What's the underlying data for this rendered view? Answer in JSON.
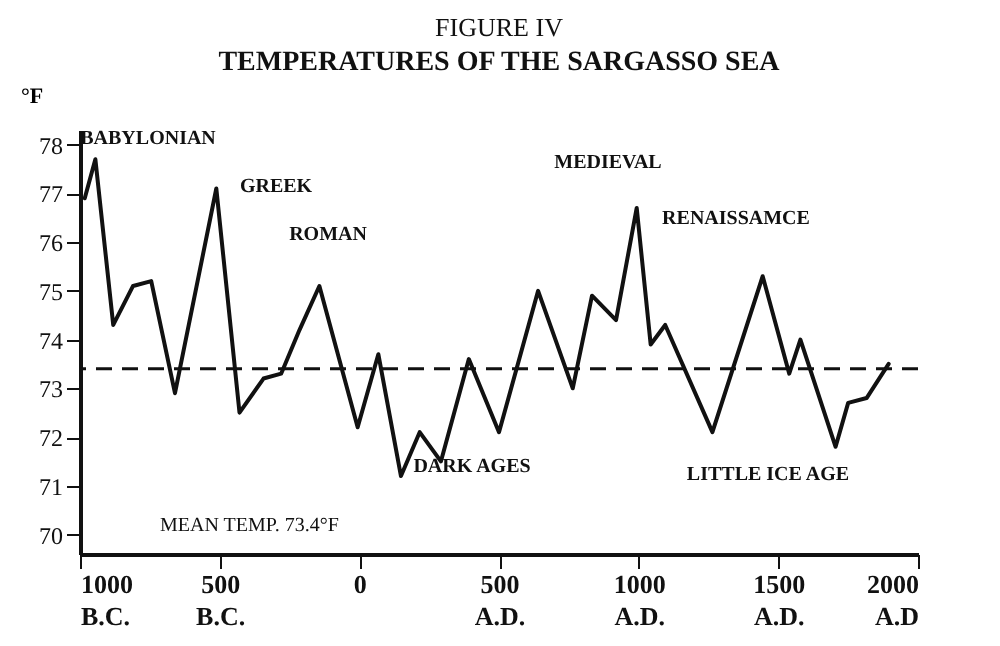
{
  "chart_data": {
    "type": "line",
    "title": "FIGURE IV",
    "subtitle": "TEMPERATURES OF THE SARGASSO SEA",
    "ylabel": "°F",
    "x": [
      -983,
      -945,
      -881,
      -810,
      -745,
      -660,
      -512,
      -429,
      -343,
      -280,
      -214,
      -143,
      -6,
      68,
      149,
      216,
      292,
      392,
      500,
      640,
      764,
      833,
      919,
      993,
      1043,
      1095,
      1264,
      1444,
      1539,
      1579,
      1705,
      1750,
      1816,
      1895
    ],
    "series": [
      {
        "color": "#111111",
        "values": [
          76.9,
          77.7,
          74.3,
          75.1,
          75.2,
          72.9,
          77.1,
          72.5,
          73.2,
          73.3,
          74.2,
          75.1,
          72.2,
          73.7,
          71.2,
          72.1,
          71.5,
          73.6,
          72.1,
          75.0,
          73.0,
          74.9,
          74.4,
          76.7,
          73.9,
          74.3,
          72.1,
          75.3,
          73.3,
          74.0,
          71.8,
          72.7,
          72.8,
          73.5
        ]
      }
    ],
    "xlim": [
      -1000,
      2000
    ],
    "ylim": [
      69.6,
      78.3
    ],
    "xticks": [
      {
        "value": -1000,
        "label": "1000 B.C."
      },
      {
        "value": -500,
        "label": "500 B.C."
      },
      0,
      {
        "value": 500,
        "label": "500 A.D."
      },
      {
        "value": 1000,
        "label": "1000 A.D."
      },
      {
        "value": 1500,
        "label": "1500 A.D."
      },
      {
        "value": 2000,
        "label": "2000 A.D"
      }
    ],
    "yticks": [
      70,
      71,
      72,
      73,
      74,
      75,
      76,
      77,
      78
    ],
    "ref_lines": [
      {
        "axis": "y",
        "value": 73.4,
        "label": "MEAN TEMP. 73.4°F",
        "line_style": "dashed"
      }
    ],
    "annotations": [
      "BABYLONIAN",
      "GREEK",
      "ROMAN",
      "DARK AGES",
      "MEDIEVAL",
      "RENAISSAMCE",
      "LITTLE ICE AGE"
    ],
    "grid": false,
    "marker": "none",
    "line_style": "solid",
    "legend": false
  }
}
